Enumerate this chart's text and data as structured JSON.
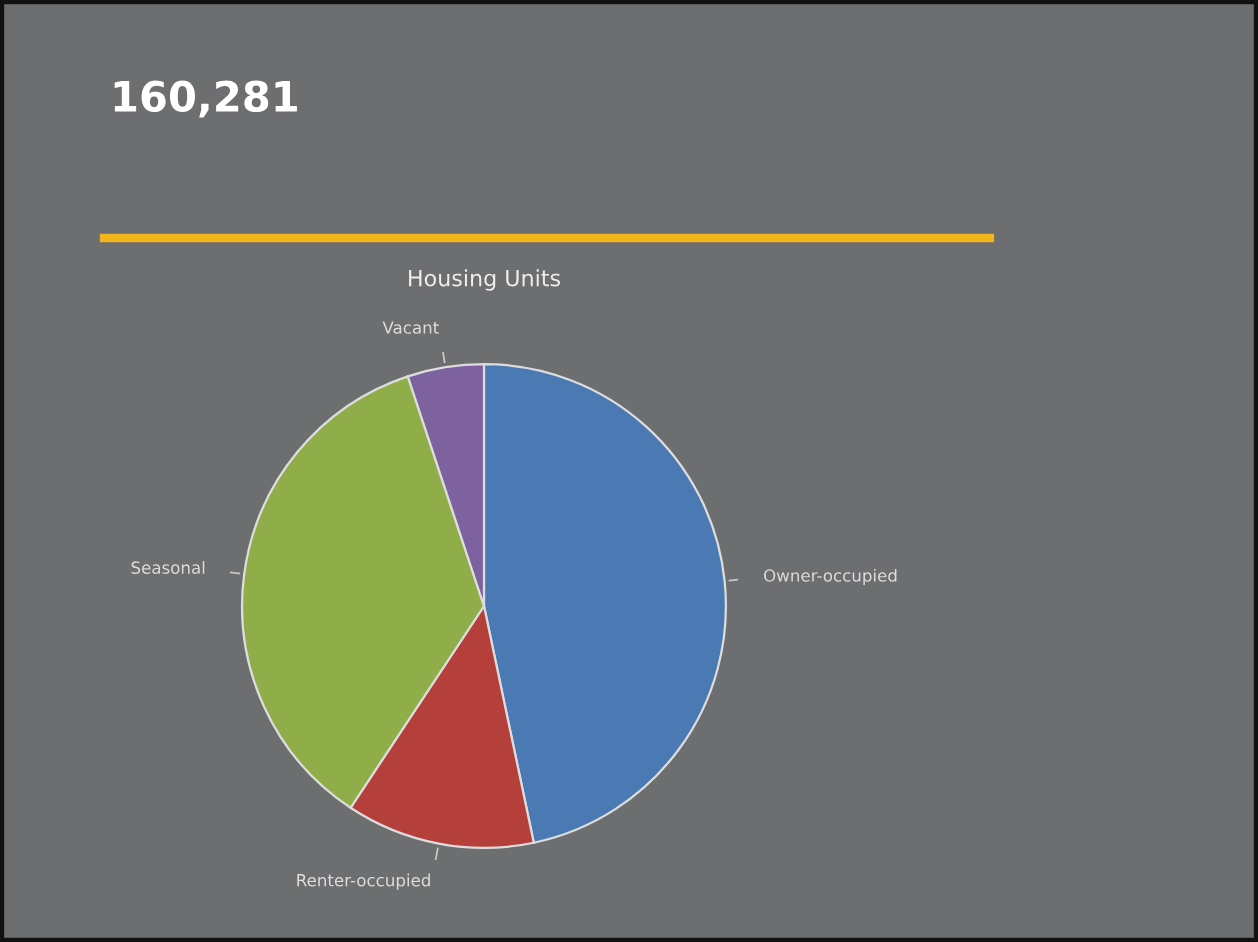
{
  "chart_data": {
    "type": "pie",
    "title": "160,281",
    "subtitle": "Housing Units",
    "categories": [
      "Owner-occupied",
      "Renter-occupied",
      "Seasonal",
      "Vacant"
    ],
    "values": [
      46.7,
      12.6,
      35.6,
      5.1
    ],
    "colors": [
      "#4a79b3",
      "#b53f3a",
      "#8fae4a",
      "#7e62a0"
    ]
  }
}
